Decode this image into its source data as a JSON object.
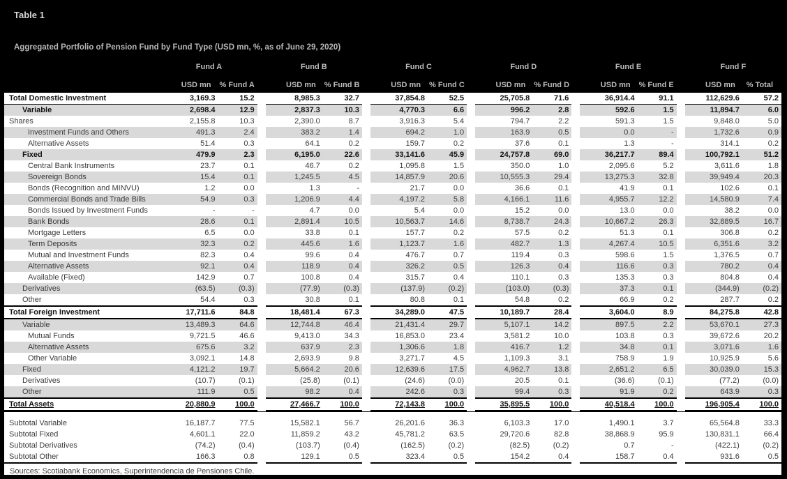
{
  "title": "Table 1",
  "subtitle": "Aggregated Portfolio of Pension Fund by Fund Type (USD mn, %, as of June 29, 2020)",
  "funds": [
    {
      "name": "Fund A",
      "usd_header": "USD mn",
      "pct_header": "% Fund A"
    },
    {
      "name": "Fund B",
      "usd_header": "USD mn",
      "pct_header": "% Fund B"
    },
    {
      "name": "Fund C",
      "usd_header": "USD mn",
      "pct_header": "% Fund C"
    },
    {
      "name": "Fund D",
      "usd_header": "USD mn",
      "pct_header": "% Fund D"
    },
    {
      "name": "Fund E",
      "usd_header": "USD mn",
      "pct_header": "% Fund E"
    },
    {
      "name": "Fund F",
      "usd_header": "USD mn",
      "pct_header": "% Total"
    }
  ],
  "rows": [
    {
      "label": "Total Domestic Investment",
      "indent": 0,
      "kind": "grand",
      "shaded": false,
      "values": [
        "3,169.3",
        "15.2",
        "8,985.3",
        "32.7",
        "37,854.8",
        "52.5",
        "25,705.8",
        "71.6",
        "36,914.4",
        "91.1",
        "112,629.6",
        "57.2"
      ]
    },
    {
      "label": "Variable",
      "indent": 1,
      "kind": "secbold",
      "shaded": true,
      "values": [
        "2,698.4",
        "12.9",
        "2,837.3",
        "10.3",
        "4,770.3",
        "6.6",
        "996.2",
        "2.8",
        "592.6",
        "1.5",
        "11,894.7",
        "6.0"
      ]
    },
    {
      "label": "Shares",
      "indent": 0,
      "kind": "item",
      "shaded": false,
      "values": [
        "2,155.8",
        "10.3",
        "2,390.0",
        "8.7",
        "3,916.3",
        "5.4",
        "794.7",
        "2.2",
        "591.3",
        "1.5",
        "9,848.0",
        "5.0"
      ]
    },
    {
      "label": "Investment Funds and Others",
      "indent": 2,
      "kind": "item",
      "shaded": true,
      "values": [
        "491.3",
        "2.4",
        "383.2",
        "1.4",
        "694.2",
        "1.0",
        "163.9",
        "0.5",
        "0.0",
        "-",
        "1,732.6",
        "0.9"
      ]
    },
    {
      "label": "Alternative Assets",
      "indent": 2,
      "kind": "item",
      "shaded": false,
      "values": [
        "51.4",
        "0.3",
        "64.1",
        "0.2",
        "159.7",
        "0.2",
        "37.6",
        "0.1",
        "1.3",
        "-",
        "314.1",
        "0.2"
      ]
    },
    {
      "label": "Fixed",
      "indent": 1,
      "kind": "secbold",
      "shaded": true,
      "values": [
        "479.9",
        "2.3",
        "6,195.0",
        "22.6",
        "33,141.6",
        "45.9",
        "24,757.8",
        "69.0",
        "36,217.7",
        "89.4",
        "100,792.1",
        "51.2"
      ]
    },
    {
      "label": "Central Bank Instruments",
      "indent": 2,
      "kind": "item",
      "shaded": false,
      "values": [
        "23.7",
        "0.1",
        "46.7",
        "0.2",
        "1,095.8",
        "1.5",
        "350.0",
        "1.0",
        "2,095.6",
        "5.2",
        "3,611.6",
        "1.8"
      ]
    },
    {
      "label": "Sovereign Bonds",
      "indent": 2,
      "kind": "item",
      "shaded": true,
      "values": [
        "15.4",
        "0.1",
        "1,245.5",
        "4.5",
        "14,857.9",
        "20.6",
        "10,555.3",
        "29.4",
        "13,275.3",
        "32.8",
        "39,949.4",
        "20.3"
      ]
    },
    {
      "label": "Bonds (Recognition and MINVU)",
      "indent": 2,
      "kind": "item",
      "shaded": false,
      "values": [
        "1.2",
        "0.0",
        "1.3",
        "-",
        "21.7",
        "0.0",
        "36.6",
        "0.1",
        "41.9",
        "0.1",
        "102.6",
        "0.1"
      ]
    },
    {
      "label": "Commercial Bonds and Trade Bills",
      "indent": 2,
      "kind": "item",
      "shaded": true,
      "values": [
        "54.9",
        "0.3",
        "1,206.9",
        "4.4",
        "4,197.2",
        "5.8",
        "4,166.1",
        "11.6",
        "4,955.7",
        "12.2",
        "14,580.9",
        "7.4"
      ]
    },
    {
      "label": "Bonds Issued by Investment Funds",
      "indent": 2,
      "kind": "item",
      "shaded": false,
      "values": [
        "-",
        "-",
        "4.7",
        "0.0",
        "5.4",
        "0.0",
        "15.2",
        "0.0",
        "13.0",
        "0.0",
        "38.2",
        "0.0"
      ]
    },
    {
      "label": "Bank Bonds",
      "indent": 2,
      "kind": "item",
      "shaded": true,
      "values": [
        "28.6",
        "0.1",
        "2,891.4",
        "10.5",
        "10,563.7",
        "14.6",
        "8,738.7",
        "24.3",
        "10,667.2",
        "26.3",
        "32,889.5",
        "16.7"
      ]
    },
    {
      "label": "Mortgage Letters",
      "indent": 2,
      "kind": "item",
      "shaded": false,
      "values": [
        "6.5",
        "0.0",
        "33.8",
        "0.1",
        "157.7",
        "0.2",
        "57.5",
        "0.2",
        "51.3",
        "0.1",
        "306.8",
        "0.2"
      ]
    },
    {
      "label": "Term Deposits",
      "indent": 2,
      "kind": "item",
      "shaded": true,
      "values": [
        "32.3",
        "0.2",
        "445.6",
        "1.6",
        "1,123.7",
        "1.6",
        "482.7",
        "1.3",
        "4,267.4",
        "10.5",
        "6,351.6",
        "3.2"
      ]
    },
    {
      "label": "Mutual and Investment Funds",
      "indent": 2,
      "kind": "item",
      "shaded": false,
      "values": [
        "82.3",
        "0.4",
        "99.6",
        "0.4",
        "476.7",
        "0.7",
        "119.4",
        "0.3",
        "598.6",
        "1.5",
        "1,376.5",
        "0.7"
      ]
    },
    {
      "label": "Alternative Assets",
      "indent": 2,
      "kind": "item",
      "shaded": true,
      "values": [
        "92.1",
        "0.4",
        "118.9",
        "0.4",
        "326.2",
        "0.5",
        "126.3",
        "0.4",
        "116.6",
        "0.3",
        "780.2",
        "0.4"
      ]
    },
    {
      "label": "Available (Fixed)",
      "indent": 2,
      "kind": "item",
      "shaded": false,
      "values": [
        "142.9",
        "0.7",
        "100.8",
        "0.4",
        "315.7",
        "0.4",
        "110.1",
        "0.3",
        "135.3",
        "0.3",
        "804.8",
        "0.4"
      ]
    },
    {
      "label": "Derivatives",
      "indent": 1,
      "kind": "item",
      "shaded": true,
      "values": [
        "(63.5)",
        "(0.3)",
        "(77.9)",
        "(0.3)",
        "(137.9)",
        "(0.2)",
        "(103.0)",
        "(0.3)",
        "37.3",
        "0.1",
        "(344.9)",
        "(0.2)"
      ]
    },
    {
      "label": "Other",
      "indent": 1,
      "kind": "item",
      "shaded": false,
      "values": [
        "54.4",
        "0.3",
        "30.8",
        "0.1",
        "80.8",
        "0.1",
        "54.8",
        "0.2",
        "66.9",
        "0.2",
        "287.7",
        "0.2"
      ]
    },
    {
      "label": "Total Foreign Investment",
      "indent": 0,
      "kind": "foreign",
      "shaded": false,
      "values": [
        "17,711.6",
        "84.8",
        "18,481.4",
        "67.3",
        "34,289.0",
        "47.5",
        "10,189.7",
        "28.4",
        "3,604.0",
        "8.9",
        "84,275.8",
        "42.8"
      ]
    },
    {
      "label": "Variable",
      "indent": 1,
      "kind": "item",
      "shaded": true,
      "values": [
        "13,489.3",
        "64.6",
        "12,744.8",
        "46.4",
        "21,431.4",
        "29.7",
        "5,107.1",
        "14.2",
        "897.5",
        "2.2",
        "53,670.1",
        "27.3"
      ]
    },
    {
      "label": "Mutual Funds",
      "indent": 2,
      "kind": "item",
      "shaded": false,
      "values": [
        "9,721.5",
        "46.6",
        "9,413.0",
        "34.3",
        "16,853.0",
        "23.4",
        "3,581.2",
        "10.0",
        "103.8",
        "0.3",
        "39,672.6",
        "20.2"
      ]
    },
    {
      "label": "Alternative Assets",
      "indent": 2,
      "kind": "item",
      "shaded": true,
      "values": [
        "675.6",
        "3.2",
        "637.9",
        "2.3",
        "1,306.6",
        "1.8",
        "416.7",
        "1.2",
        "34.8",
        "0.1",
        "3,071.6",
        "1.6"
      ]
    },
    {
      "label": "Other Variable",
      "indent": 2,
      "kind": "item",
      "shaded": false,
      "values": [
        "3,092.1",
        "14.8",
        "2,693.9",
        "9.8",
        "3,271.7",
        "4.5",
        "1,109.3",
        "3.1",
        "758.9",
        "1.9",
        "10,925.9",
        "5.6"
      ]
    },
    {
      "label": "Fixed",
      "indent": 1,
      "kind": "item",
      "shaded": true,
      "values": [
        "4,121.2",
        "19.7",
        "5,664.2",
        "20.6",
        "12,639.6",
        "17.5",
        "4,962.7",
        "13.8",
        "2,651.2",
        "6.5",
        "30,039.0",
        "15.3"
      ]
    },
    {
      "label": "Derivatives",
      "indent": 1,
      "kind": "item",
      "shaded": false,
      "values": [
        "(10.7)",
        "(0.1)",
        "(25.8)",
        "(0.1)",
        "(24.6)",
        "(0.0)",
        "20.5",
        "0.1",
        "(36.6)",
        "(0.1)",
        "(77.2)",
        "(0.0)"
      ]
    },
    {
      "label": "Other",
      "indent": 1,
      "kind": "item",
      "shaded": true,
      "values": [
        "111.9",
        "0.5",
        "98.2",
        "0.4",
        "242.6",
        "0.3",
        "99.4",
        "0.3",
        "91.9",
        "0.2",
        "643.9",
        "0.3"
      ]
    },
    {
      "label": "Total Assets",
      "indent": 0,
      "kind": "assets",
      "shaded": false,
      "gap_after": true,
      "values": [
        "20,880.9",
        "100.0",
        "27,466.7",
        "100.0",
        "72,143.8",
        "100.0",
        "35,895.5",
        "100.0",
        "40,518.4",
        "100.0",
        "196,905.4",
        "100.0"
      ]
    },
    {
      "label": "Subtotal Variable",
      "indent": 0,
      "kind": "subtotal",
      "shaded": false,
      "values": [
        "16,187.7",
        "77.5",
        "15,582.1",
        "56.7",
        "26,201.6",
        "36.3",
        "6,103.3",
        "17.0",
        "1,490.1",
        "3.7",
        "65,564.8",
        "33.3"
      ]
    },
    {
      "label": "Subtotal Fixed",
      "indent": 0,
      "kind": "subtotal",
      "shaded": false,
      "values": [
        "4,601.1",
        "22.0",
        "11,859.2",
        "43.2",
        "45,781.2",
        "63.5",
        "29,720.6",
        "82.8",
        "38,868.9",
        "95.9",
        "130,831.1",
        "66.4"
      ]
    },
    {
      "label": "Subtotal Derivatives",
      "indent": 0,
      "kind": "subtotal",
      "shaded": false,
      "values": [
        "(74.2)",
        "(0.4)",
        "(103.7)",
        "(0.4)",
        "(162.5)",
        "(0.2)",
        "(82.5)",
        "(0.2)",
        "0.7",
        "-",
        "(422.1)",
        "(0.2)"
      ]
    },
    {
      "label": "Subtotal Other",
      "indent": 0,
      "kind": "subtotal-last",
      "shaded": false,
      "values": [
        "166.3",
        "0.8",
        "129.1",
        "0.5",
        "323.4",
        "0.5",
        "154.2",
        "0.4",
        "158.7",
        "0.4",
        "931.6",
        "0.5"
      ]
    }
  ],
  "source": "Sources: Scotiabank Economics, Superintendencia de Pensiones Chile.",
  "colors": {
    "header_bg": "#000000",
    "header_text": "#bdbdbd",
    "row_shade": "#d9d9d9"
  }
}
